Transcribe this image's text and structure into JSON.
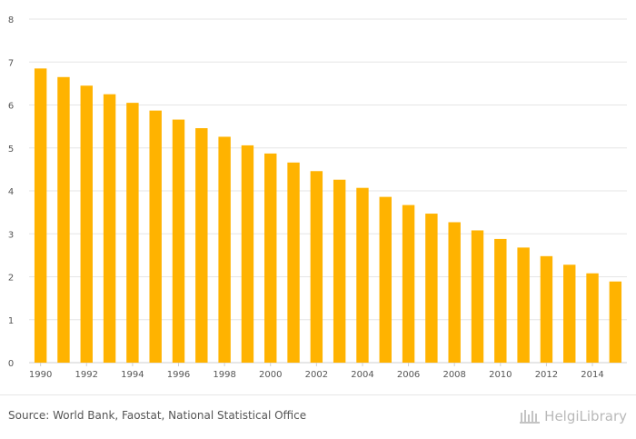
{
  "chart_data": {
    "type": "bar",
    "title": "",
    "xlabel": "",
    "ylabel": "",
    "ylim": [
      0,
      8
    ],
    "yticks": [
      0,
      1,
      2,
      3,
      4,
      5,
      6,
      7,
      8
    ],
    "grid": true,
    "legend": "none",
    "bar_color": "#ffb300",
    "categories": [
      "1990",
      "1991",
      "1992",
      "1993",
      "1994",
      "1995",
      "1996",
      "1997",
      "1998",
      "1999",
      "2000",
      "2001",
      "2002",
      "2003",
      "2004",
      "2005",
      "2006",
      "2007",
      "2008",
      "2009",
      "2010",
      "2011",
      "2012",
      "2013",
      "2014",
      "2015"
    ],
    "x_tick_labels": [
      "1990",
      "1992",
      "1994",
      "1996",
      "1998",
      "2000",
      "2002",
      "2004",
      "2006",
      "2008",
      "2010",
      "2012",
      "2014"
    ],
    "values": [
      6.85,
      6.65,
      6.45,
      6.25,
      6.05,
      5.87,
      5.66,
      5.46,
      5.26,
      5.06,
      4.87,
      4.66,
      4.46,
      4.26,
      4.07,
      3.86,
      3.67,
      3.47,
      3.27,
      3.08,
      2.88,
      2.68,
      2.48,
      2.28,
      2.08,
      1.89
    ]
  },
  "footer": {
    "source": "Source: World Bank, Faostat, National Statistical Office",
    "brand": "HelgiLibrary"
  }
}
